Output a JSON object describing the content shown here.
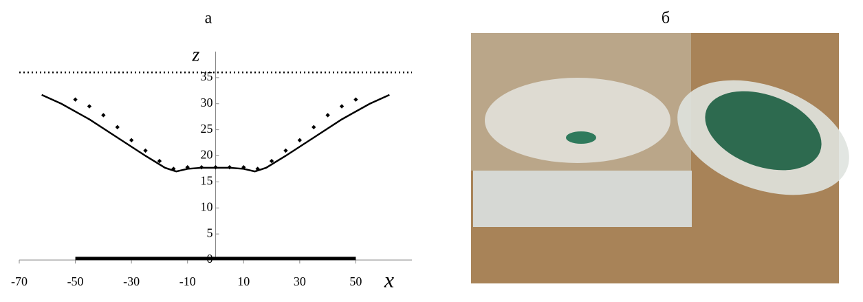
{
  "chart_data": {
    "type": "line",
    "title": "а",
    "x_label": "x",
    "y_label": "z",
    "xlim": [
      -70,
      70
    ],
    "xticks": [
      -70,
      -50,
      -30,
      -10,
      10,
      30,
      50
    ],
    "ylim": [
      0,
      40
    ],
    "yticks": [
      0,
      5,
      10,
      15,
      20,
      25,
      30,
      35
    ],
    "hline": 36,
    "hline_style": "dotted",
    "series": [
      {
        "color": "#000000",
        "line_style": "solid",
        "x": [
          -62,
          -55,
          -45,
          -35,
          -25,
          -18,
          -14,
          -10,
          -5,
          0,
          5,
          10,
          14,
          18,
          25,
          35,
          45,
          55,
          62
        ],
        "values": [
          31.7,
          30,
          27,
          23.5,
          20,
          17.7,
          17,
          17.5,
          17.7,
          17.7,
          17.7,
          17.5,
          17,
          17.7,
          20,
          23.5,
          27,
          30,
          31.7
        ]
      },
      {
        "color": "#000000",
        "line_style": "markers",
        "x": [
          -50,
          -45,
          -40,
          -35,
          -30,
          -25,
          -20,
          -15,
          -10,
          -5,
          0,
          5,
          10,
          15,
          20,
          25,
          30,
          35,
          40,
          45,
          50
        ],
        "values": [
          30.8,
          29.5,
          27.8,
          25.5,
          23,
          21,
          19,
          17.5,
          17.8,
          17.8,
          17.8,
          17.8,
          17.8,
          17.5,
          19,
          21,
          23,
          25.5,
          27.8,
          29.5,
          30.8
        ]
      },
      {
        "color": "#000000",
        "line_style": "thick",
        "x": [
          -50,
          50
        ],
        "values": [
          0.3,
          0.3
        ]
      }
    ]
  },
  "photo_label": "б"
}
